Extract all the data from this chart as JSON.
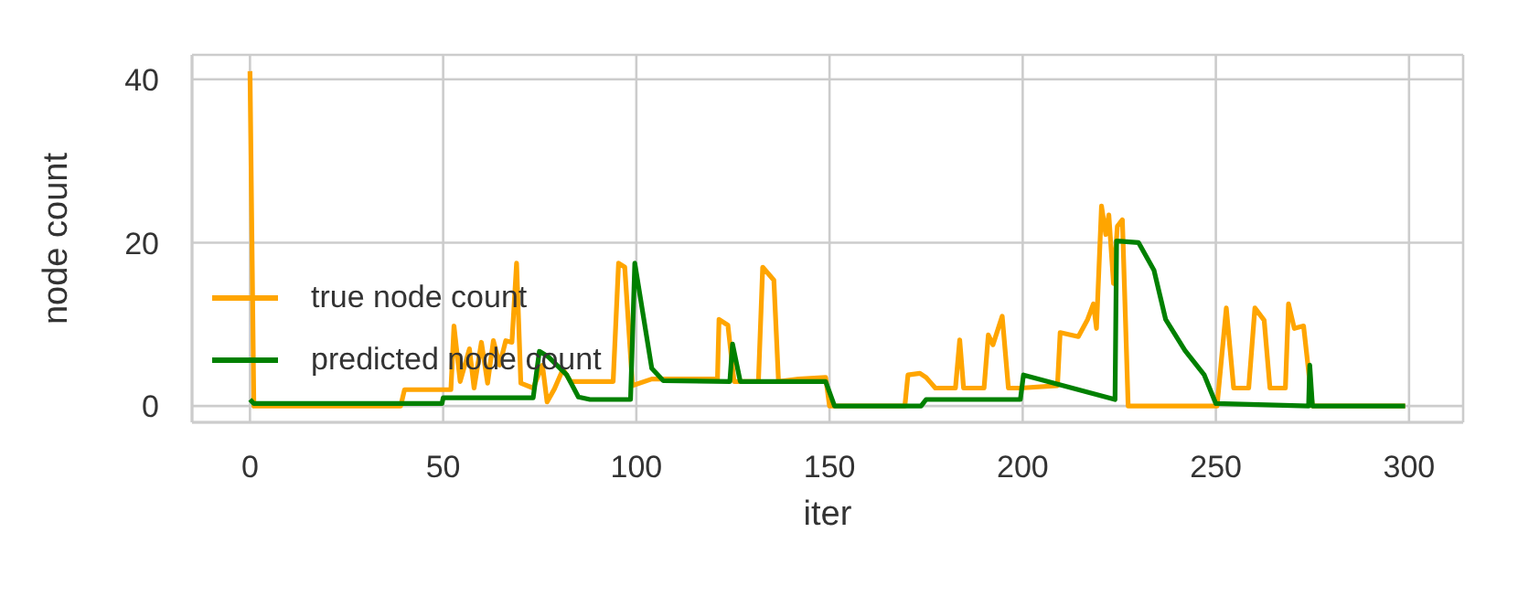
{
  "chart_data": {
    "type": "line",
    "xlabel": "iter",
    "ylabel": "node count",
    "xlim": [
      -15,
      314
    ],
    "ylim": [
      -2,
      43
    ],
    "xticks": [
      0,
      50,
      100,
      150,
      200,
      250,
      300
    ],
    "yticks": [
      0,
      20,
      40
    ],
    "grid": true,
    "legend": "left",
    "marker": "none",
    "line_style": "solid",
    "series": [
      {
        "name": "true node count",
        "color": "#ffa500",
        "x": [
          0,
          1,
          39,
          40,
          52,
          52.8,
          54.4,
          56.8,
          58,
          59.9,
          61.5,
          63,
          64.6,
          66.2,
          67.8,
          69,
          70.1,
          73.3,
          75.7,
          76.9,
          78.8,
          81,
          83,
          94,
          95.4,
          97,
          99,
          104,
          121,
          121.4,
          123.7,
          125.3,
          131.6,
          132.7,
          135.6,
          136.8,
          142,
          149,
          150,
          169.5,
          170.3,
          173.4,
          175,
          177.4,
          182.6,
          183.7,
          184.7,
          190,
          191.1,
          192.3,
          194.7,
          196.3,
          199.4,
          209,
          209.7,
          214.4,
          216.8,
          218.3,
          219.1,
          220.4,
          221.5,
          222.3,
          223.5,
          224.5,
          225.8,
          227.3,
          250.3,
          252.7,
          254.6,
          258.5,
          260.1,
          262.5,
          264,
          268,
          268.8,
          270.3,
          272.7,
          275,
          299
        ],
        "values": [
          41,
          0,
          0,
          2,
          2,
          9.8,
          3,
          7,
          2.2,
          7.8,
          2.8,
          8,
          5,
          8,
          7.8,
          17.5,
          2.8,
          2.2,
          5,
          0.5,
          2.1,
          4.5,
          3,
          3,
          17.5,
          17,
          2.5,
          3.3,
          3.3,
          10.6,
          9.9,
          3,
          3,
          17,
          15.4,
          3,
          3.3,
          3.5,
          0,
          0,
          3.8,
          4,
          3.5,
          2.2,
          2.2,
          8.1,
          2.2,
          2.2,
          8.7,
          7.5,
          11,
          2.2,
          2.2,
          2.5,
          9,
          8.5,
          10.6,
          12.5,
          9.5,
          24.5,
          21,
          23.4,
          15,
          22,
          22.8,
          0,
          0,
          12,
          2.2,
          2.2,
          12,
          10.5,
          2.2,
          2.2,
          12.5,
          9.5,
          9.8,
          0,
          0
        ]
      },
      {
        "name": "predicted node count",
        "color": "#008000",
        "x": [
          0,
          1,
          49.7,
          50,
          73.3,
          74.9,
          77.3,
          82,
          85,
          88,
          98.5,
          99.6,
          104,
          107,
          124.2,
          124.9,
          126.9,
          149,
          151.3,
          173.7,
          175,
          199.4,
          200.2,
          223.9,
          224.3,
          230,
          234,
          237,
          242,
          247,
          250,
          274,
          274.3,
          275,
          299
        ],
        "values": [
          0.8,
          0.3,
          0.3,
          1,
          1,
          6.7,
          6,
          3.8,
          1.1,
          0.8,
          0.8,
          17.5,
          4.6,
          3.1,
          3,
          7.6,
          3,
          3,
          0,
          0,
          0.8,
          0.8,
          3.8,
          0.8,
          20.2,
          20,
          16.6,
          10.6,
          6.8,
          3.8,
          0.3,
          0,
          5,
          0,
          0
        ]
      }
    ]
  }
}
